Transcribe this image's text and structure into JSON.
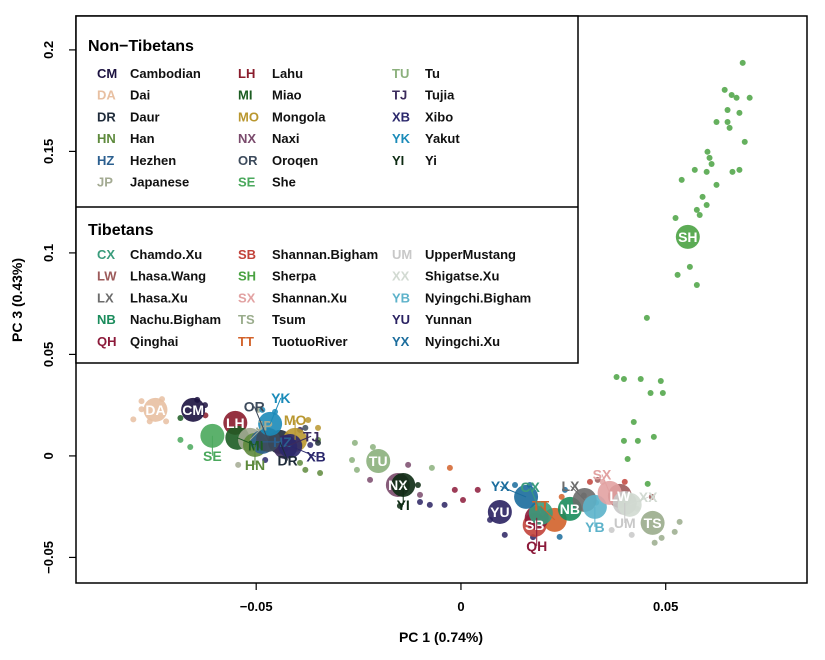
{
  "chart_data": {
    "type": "scatter",
    "title": "",
    "xlabel": "PC 1 (0.74%)",
    "ylabel": "PC 3 (0.43%)",
    "xlim": [
      -0.094,
      0.0845
    ],
    "ylim": [
      -0.0626,
      0.2167
    ],
    "xticks": [
      -0.05,
      0,
      0.05
    ],
    "xtick_labels": [
      "−0.05",
      "0",
      "0.05"
    ],
    "yticks": [
      -0.05,
      0,
      0.05,
      0.1,
      0.15,
      0.2
    ],
    "ytick_labels": [
      "−0.05",
      "0",
      "0.05",
      "0.1",
      "0.15",
      "0.2"
    ],
    "grid": false,
    "legend_placement": "top-left",
    "legend": [
      {
        "group": "Non−Tibetans",
        "columns": [
          [
            {
              "code": "CM",
              "name": "Cambodian"
            },
            {
              "code": "DA",
              "name": "Dai"
            },
            {
              "code": "DR",
              "name": "Daur"
            },
            {
              "code": "HN",
              "name": "Han"
            },
            {
              "code": "HZ",
              "name": "Hezhen"
            },
            {
              "code": "JP",
              "name": "Japanese"
            }
          ],
          [
            {
              "code": "LH",
              "name": "Lahu"
            },
            {
              "code": "MI",
              "name": "Miao"
            },
            {
              "code": "MO",
              "name": "Mongola"
            },
            {
              "code": "NX",
              "name": "Naxi"
            },
            {
              "code": "OR",
              "name": "Oroqen"
            },
            {
              "code": "SE",
              "name": "She"
            }
          ],
          [
            {
              "code": "TU",
              "name": "Tu"
            },
            {
              "code": "TJ",
              "name": "Tujia"
            },
            {
              "code": "XB",
              "name": "Xibo"
            },
            {
              "code": "YK",
              "name": "Yakut"
            },
            {
              "code": "YI",
              "name": "Yi"
            }
          ]
        ]
      },
      {
        "group": "Tibetans",
        "columns": [
          [
            {
              "code": "CX",
              "name": "Chamdo.Xu"
            },
            {
              "code": "LW",
              "name": "Lhasa.Wang"
            },
            {
              "code": "LX",
              "name": "Lhasa.Xu"
            },
            {
              "code": "NB",
              "name": "Nachu.Bigham"
            },
            {
              "code": "QH",
              "name": "Qinghai"
            }
          ],
          [
            {
              "code": "SB",
              "name": "Shannan.Bigham"
            },
            {
              "code": "SH",
              "name": "Sherpa"
            },
            {
              "code": "SX",
              "name": "Shannan.Xu"
            },
            {
              "code": "TS",
              "name": "Tsum"
            },
            {
              "code": "TT",
              "name": "TuotuoRiver"
            }
          ],
          [
            {
              "code": "UM",
              "name": "UpperMustang"
            },
            {
              "code": "XX",
              "name": "Shigatse.Xu"
            },
            {
              "code": "YB",
              "name": "Nyingchi.Bigham"
            },
            {
              "code": "YU",
              "name": "Yunnan"
            },
            {
              "code": "YX",
              "name": "Nyingchi.Xu"
            }
          ]
        ]
      }
    ],
    "colors": {
      "CM": "#1c1240",
      "DA": "#e8c0a2",
      "DR": "#1f2b3a",
      "HN": "#5e8a3c",
      "HZ": "#2b5f8f",
      "JP": "#a3aa92",
      "LH": "#8a1c2c",
      "MI": "#1c5c22",
      "MO": "#b9972f",
      "NX": "#7a4a6c",
      "OR": "#3d4b5c",
      "SE": "#4aa85c",
      "TU": "#8bb07c",
      "TJ": "#3b2b5c",
      "XB": "#2b286c",
      "YK": "#1b8bb9",
      "YI": "#0c2a12",
      "CX": "#3a9c7c",
      "LW": "#9c5a5a",
      "LX": "#6c6c6c",
      "NB": "#1a8c5c",
      "QH": "#8c1a3a",
      "SB": "#c2423a",
      "SH": "#4aa242",
      "SX": "#e2a2a2",
      "TS": "#9aac8c",
      "TT": "#d2622a",
      "UM": "#c8c8c8",
      "XX": "#d2dad2",
      "YB": "#5cb2ca",
      "YU": "#2a2262",
      "YX": "#1a6c9c"
    },
    "centroids": [
      {
        "code": "DA",
        "x": -0.0746,
        "y": 0.0227
      },
      {
        "code": "CM",
        "x": -0.0654,
        "y": 0.0227
      },
      {
        "code": "LH",
        "x": -0.0551,
        "y": 0.0163
      },
      {
        "code": "SE",
        "x": -0.0607,
        "y": 0.0099
      },
      {
        "code": "MI",
        "x": -0.0546,
        "y": 0.0089
      },
      {
        "code": "JP",
        "x": -0.0515,
        "y": 0.0079
      },
      {
        "code": "HN",
        "x": -0.0503,
        "y": 0.0054
      },
      {
        "code": "HZ",
        "x": -0.0485,
        "y": 0.0069
      },
      {
        "code": "DR",
        "x": -0.0442,
        "y": 0.0069
      },
      {
        "code": "MO",
        "x": -0.0405,
        "y": 0.0079
      },
      {
        "code": "TJ",
        "x": -0.0429,
        "y": 0.0044
      },
      {
        "code": "XB",
        "x": -0.0417,
        "y": 0.0049
      },
      {
        "code": "OR",
        "x": -0.0471,
        "y": 0.0079
      },
      {
        "code": "YK",
        "x": -0.0466,
        "y": 0.0158
      },
      {
        "code": "TU",
        "x": -0.0202,
        "y": -0.0025
      },
      {
        "code": "NX",
        "x": -0.0154,
        "y": -0.0143
      },
      {
        "code": "YI",
        "x": -0.0141,
        "y": -0.0143
      },
      {
        "code": "YU",
        "x": 0.0095,
        "y": -0.0276
      },
      {
        "code": "SB",
        "x": 0.018,
        "y": -0.034
      },
      {
        "code": "TT",
        "x": 0.0229,
        "y": -0.0315
      },
      {
        "code": "QH",
        "x": 0.0185,
        "y": -0.0305
      },
      {
        "code": "CX",
        "x": 0.0195,
        "y": -0.0281
      },
      {
        "code": "YX",
        "x": 0.0159,
        "y": -0.0202
      },
      {
        "code": "NB",
        "x": 0.0266,
        "y": -0.0261
      },
      {
        "code": "LX",
        "x": 0.0302,
        "y": -0.0217
      },
      {
        "code": "YB",
        "x": 0.0327,
        "y": -0.0251
      },
      {
        "code": "LW",
        "x": 0.0388,
        "y": -0.0197
      },
      {
        "code": "SX",
        "x": 0.0363,
        "y": -0.0182
      },
      {
        "code": "UM",
        "x": 0.04,
        "y": -0.0232
      },
      {
        "code": "XX",
        "x": 0.0412,
        "y": -0.0241
      },
      {
        "code": "TS",
        "x": 0.0468,
        "y": -0.033
      },
      {
        "code": "SH",
        "x": 0.0554,
        "y": 0.1079
      }
    ],
    "points": [
      {
        "code": "SH",
        "xy": [
          [
            0.0688,
            0.1936
          ],
          [
            0.0644,
            0.1803
          ],
          [
            0.0661,
            0.1778
          ],
          [
            0.0673,
            0.1764
          ],
          [
            0.0705,
            0.1764
          ],
          [
            0.0651,
            0.1704
          ],
          [
            0.068,
            0.169
          ],
          [
            0.0624,
            0.1645
          ],
          [
            0.0651,
            0.1645
          ],
          [
            0.0656,
            0.1616
          ],
          [
            0.0693,
            0.1547
          ],
          [
            0.0602,
            0.1498
          ],
          [
            0.0607,
            0.1468
          ],
          [
            0.0612,
            0.1438
          ],
          [
            0.0571,
            0.1409
          ],
          [
            0.06,
            0.1399
          ],
          [
            0.0663,
            0.1399
          ],
          [
            0.068,
            0.1409
          ],
          [
            0.0539,
            0.136
          ],
          [
            0.0624,
            0.1335
          ],
          [
            0.059,
            0.1276
          ],
          [
            0.06,
            0.1236
          ],
          [
            0.0576,
            0.1212
          ],
          [
            0.0524,
            0.1172
          ],
          [
            0.0583,
            0.1187
          ],
          [
            0.0559,
            0.0931
          ],
          [
            0.0529,
            0.0892
          ],
          [
            0.0576,
            0.0842
          ],
          [
            0.0454,
            0.068
          ],
          [
            0.038,
            0.0389
          ],
          [
            0.0398,
            0.0379
          ],
          [
            0.0439,
            0.0379
          ],
          [
            0.0488,
            0.0369
          ],
          [
            0.0463,
            0.031
          ],
          [
            0.0493,
            0.031
          ],
          [
            0.0422,
            0.0167
          ],
          [
            0.0398,
            0.0074
          ],
          [
            0.0432,
            0.0074
          ],
          [
            0.0471,
            0.0094
          ],
          [
            0.0407,
            -0.0015
          ],
          [
            0.0456,
            -0.0138
          ]
        ]
      },
      {
        "code": "DA",
        "xy": [
          [
            -0.078,
            0.023
          ],
          [
            -0.08,
            0.018
          ],
          [
            -0.076,
            0.017
          ],
          [
            -0.078,
            0.027
          ],
          [
            -0.073,
            0.028
          ],
          [
            -0.072,
            0.017
          ]
        ]
      },
      {
        "code": "CM",
        "xy": [
          [
            -0.0644,
            0.0276
          ],
          [
            -0.0625,
            0.025
          ]
        ]
      },
      {
        "code": "SE",
        "xy": [
          [
            -0.0661,
            0.0044
          ],
          [
            -0.0685,
            0.0079
          ]
        ]
      },
      {
        "code": "LH",
        "xy": [
          [
            -0.0624,
            0.02
          ]
        ]
      },
      {
        "code": "MI",
        "xy": [
          [
            -0.0685,
            0.0187
          ]
        ]
      },
      {
        "code": "JP",
        "xy": [
          [
            -0.0544,
            -0.0044
          ],
          [
            -0.0495,
            0.0227
          ]
        ]
      },
      {
        "code": "YK",
        "xy": [
          [
            -0.0454,
            0.0217
          ],
          [
            -0.0485,
            0.0227
          ]
        ]
      },
      {
        "code": "MO",
        "xy": [
          [
            -0.0373,
            0.0177
          ],
          [
            -0.0349,
            0.0138
          ]
        ]
      },
      {
        "code": "HN",
        "xy": [
          [
            -0.0344,
            -0.0084
          ],
          [
            -0.0393,
            -0.0034
          ],
          [
            -0.0349,
            0.0079
          ],
          [
            -0.038,
            -0.0069
          ]
        ]
      },
      {
        "code": "HZ",
        "xy": [
          [
            -0.0393,
            0.0054
          ]
        ]
      },
      {
        "code": "XB",
        "xy": [
          [
            -0.0368,
            0.0054
          ],
          [
            -0.0478,
            -0.002
          ]
        ]
      },
      {
        "code": "DR",
        "xy": [
          [
            -0.0349,
            0.0064
          ]
        ]
      },
      {
        "code": "OR",
        "xy": [
          [
            -0.038,
            0.0138
          ]
        ]
      },
      {
        "code": "TJ",
        "xy": [
          [
            -0.0393,
            0.0128
          ]
        ]
      },
      {
        "code": "TU",
        "xy": [
          [
            -0.0259,
            0.0064
          ],
          [
            -0.0215,
            0.0044
          ],
          [
            -0.0254,
            -0.0069
          ],
          [
            -0.0071,
            -0.0059
          ],
          [
            -0.0266,
            -0.002
          ]
        ]
      },
      {
        "code": "TT",
        "xy": [
          [
            -0.0027,
            -0.0059
          ],
          [
            0.0246,
            -0.0202
          ]
        ]
      },
      {
        "code": "NX",
        "xy": [
          [
            -0.0129,
            -0.0044
          ],
          [
            -0.0222,
            -0.0118
          ],
          [
            -0.01,
            -0.0192
          ]
        ]
      },
      {
        "code": "YI",
        "xy": [
          [
            -0.0149,
            -0.0246
          ],
          [
            -0.0105,
            -0.0143
          ]
        ]
      },
      {
        "code": "YU",
        "xy": [
          [
            -0.01,
            -0.0227
          ],
          [
            -0.0076,
            -0.0241
          ],
          [
            0.0107,
            -0.0389
          ],
          [
            0.0176,
            -0.04
          ],
          [
            0.0071,
            -0.0315
          ],
          [
            -0.004,
            -0.0241
          ]
        ]
      },
      {
        "code": "QH",
        "xy": [
          [
            -0.0015,
            -0.0167
          ],
          [
            0.0005,
            -0.0217
          ],
          [
            0.0041,
            -0.0167
          ]
        ]
      },
      {
        "code": "YX",
        "xy": [
          [
            0.0132,
            -0.0143
          ],
          [
            0.0168,
            -0.0143
          ],
          [
            0.0241,
            -0.0399
          ],
          [
            0.0254,
            -0.0167
          ]
        ]
      },
      {
        "code": "UM",
        "xy": [
          [
            0.0368,
            -0.0365
          ],
          [
            0.0417,
            -0.0389
          ]
        ]
      },
      {
        "code": "TS",
        "xy": [
          [
            0.0534,
            -0.0325
          ],
          [
            0.0522,
            -0.0374
          ],
          [
            0.049,
            -0.0404
          ],
          [
            0.0473,
            -0.0428
          ]
        ]
      },
      {
        "code": "LW",
        "xy": [
          [
            0.0466,
            -0.0202
          ],
          [
            0.0334,
            -0.0118
          ]
        ]
      },
      {
        "code": "SB",
        "xy": [
          [
            0.0315,
            -0.0128
          ],
          [
            0.04,
            -0.0128
          ]
        ]
      },
      {
        "code": "SX",
        "xy": [
          [
            0.0346,
            -0.0128
          ]
        ]
      },
      {
        "code": "CX",
        "xy": [
          [
            0.021,
            -0.031
          ]
        ]
      },
      {
        "code": "NB",
        "xy": [
          [
            0.028,
            -0.024
          ]
        ]
      },
      {
        "code": "LX",
        "xy": [
          [
            0.03,
            -0.0195
          ]
        ]
      },
      {
        "code": "YB",
        "xy": [
          [
            0.033,
            -0.023
          ]
        ]
      },
      {
        "code": "XX",
        "xy": [
          [
            0.043,
            -0.026
          ]
        ]
      }
    ]
  }
}
